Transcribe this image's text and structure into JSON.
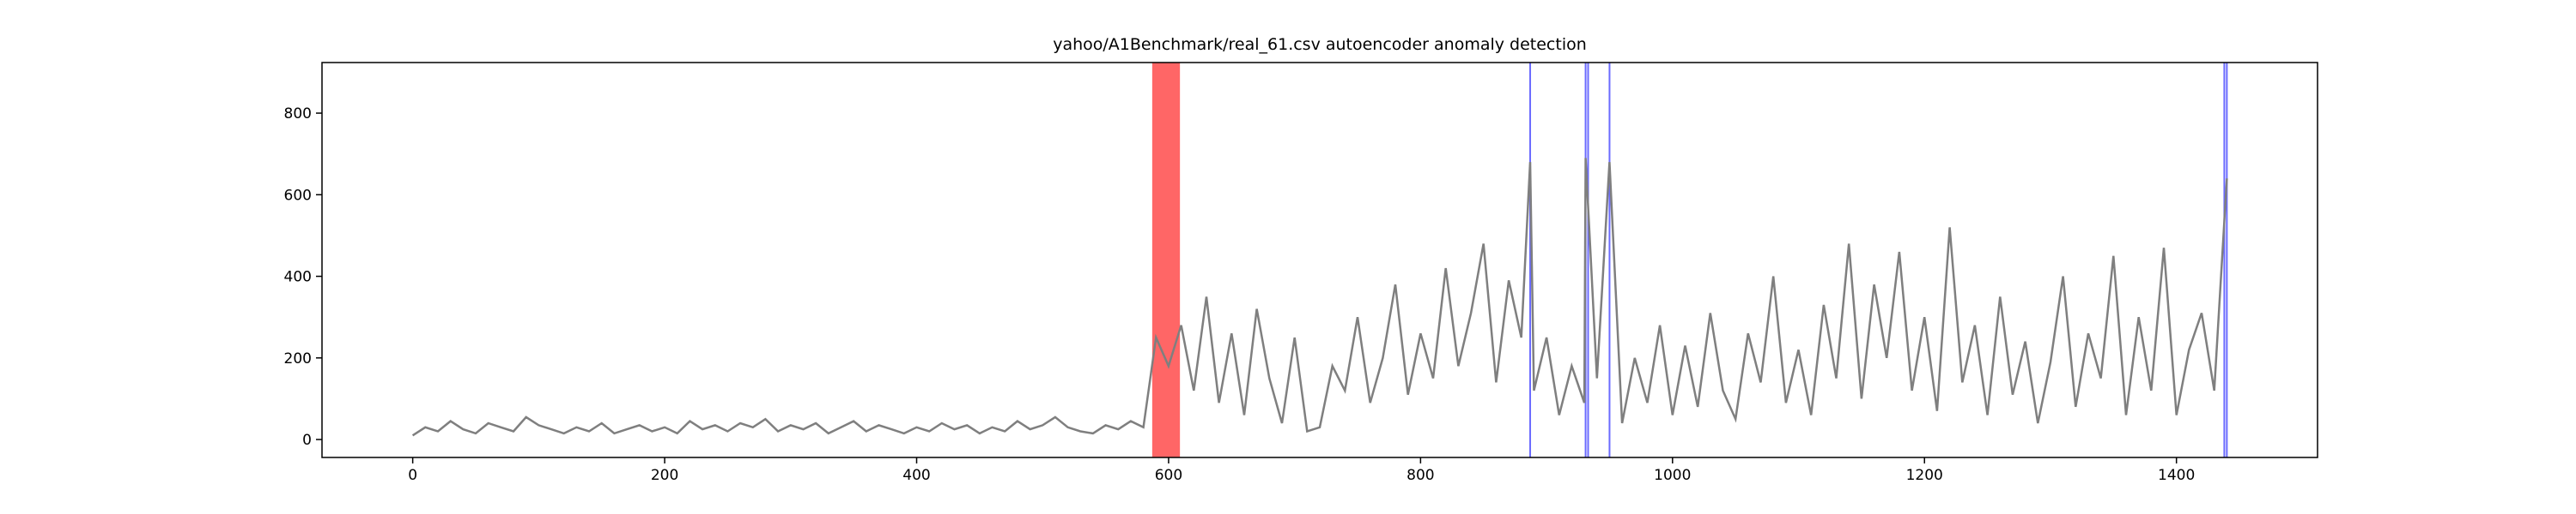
{
  "chart_data": {
    "type": "line",
    "title": "yahoo/A1Benchmark/real_61.csv autoencoder anomaly detection",
    "x": [
      0,
      10,
      20,
      30,
      40,
      50,
      60,
      70,
      80,
      90,
      100,
      110,
      120,
      130,
      140,
      150,
      160,
      170,
      180,
      190,
      200,
      210,
      220,
      230,
      240,
      250,
      260,
      270,
      280,
      290,
      300,
      310,
      320,
      330,
      340,
      350,
      360,
      370,
      380,
      390,
      400,
      410,
      420,
      430,
      440,
      450,
      460,
      470,
      480,
      490,
      500,
      510,
      520,
      530,
      540,
      550,
      560,
      570,
      580,
      590,
      600,
      610,
      620,
      630,
      640,
      650,
      660,
      670,
      680,
      690,
      700,
      710,
      720,
      730,
      740,
      750,
      760,
      770,
      780,
      790,
      800,
      810,
      820,
      830,
      840,
      850,
      860,
      870,
      880,
      887,
      890,
      900,
      910,
      920,
      930,
      931,
      940,
      950,
      960,
      970,
      980,
      990,
      1000,
      1010,
      1020,
      1030,
      1040,
      1050,
      1060,
      1070,
      1080,
      1090,
      1100,
      1110,
      1120,
      1130,
      1140,
      1150,
      1160,
      1170,
      1180,
      1190,
      1200,
      1210,
      1220,
      1230,
      1240,
      1250,
      1260,
      1270,
      1280,
      1290,
      1300,
      1310,
      1320,
      1330,
      1340,
      1350,
      1360,
      1370,
      1380,
      1390,
      1400,
      1410,
      1420,
      1430,
      1440
    ],
    "values": [
      10,
      30,
      20,
      45,
      25,
      15,
      40,
      30,
      20,
      55,
      35,
      25,
      15,
      30,
      20,
      40,
      15,
      25,
      35,
      20,
      30,
      15,
      45,
      25,
      35,
      20,
      40,
      30,
      50,
      20,
      35,
      25,
      40,
      15,
      30,
      45,
      20,
      35,
      25,
      15,
      30,
      20,
      40,
      25,
      35,
      15,
      30,
      20,
      45,
      25,
      35,
      55,
      30,
      20,
      15,
      35,
      25,
      45,
      30,
      250,
      180,
      280,
      120,
      350,
      90,
      260,
      60,
      320,
      150,
      40,
      250,
      20,
      30,
      180,
      120,
      300,
      90,
      200,
      380,
      110,
      260,
      150,
      420,
      180,
      310,
      480,
      140,
      390,
      250,
      680,
      120,
      250,
      60,
      180,
      90,
      690,
      150,
      680,
      40,
      200,
      90,
      280,
      60,
      230,
      80,
      310,
      120,
      50,
      260,
      140,
      400,
      90,
      220,
      60,
      330,
      150,
      480,
      100,
      380,
      200,
      460,
      120,
      300,
      70,
      520,
      140,
      280,
      60,
      350,
      110,
      240,
      40,
      190,
      400,
      80,
      260,
      150,
      450,
      60,
      300,
      120,
      470,
      60,
      220,
      310,
      120,
      640
    ],
    "color": "#7f7f7f",
    "anomaly_spans": [
      [
        587,
        609
      ]
    ],
    "span_color": "#ff6666",
    "anomaly_lines": [
      887,
      931,
      933,
      950,
      1438,
      1440
    ],
    "line_color": "#6b6bff",
    "xlim": [
      -72,
      1512
    ],
    "ylim": [
      -44,
      924
    ],
    "xticks": [
      0,
      200,
      400,
      600,
      800,
      1000,
      1200,
      1400
    ],
    "yticks": [
      0,
      200,
      400,
      600,
      800
    ]
  }
}
